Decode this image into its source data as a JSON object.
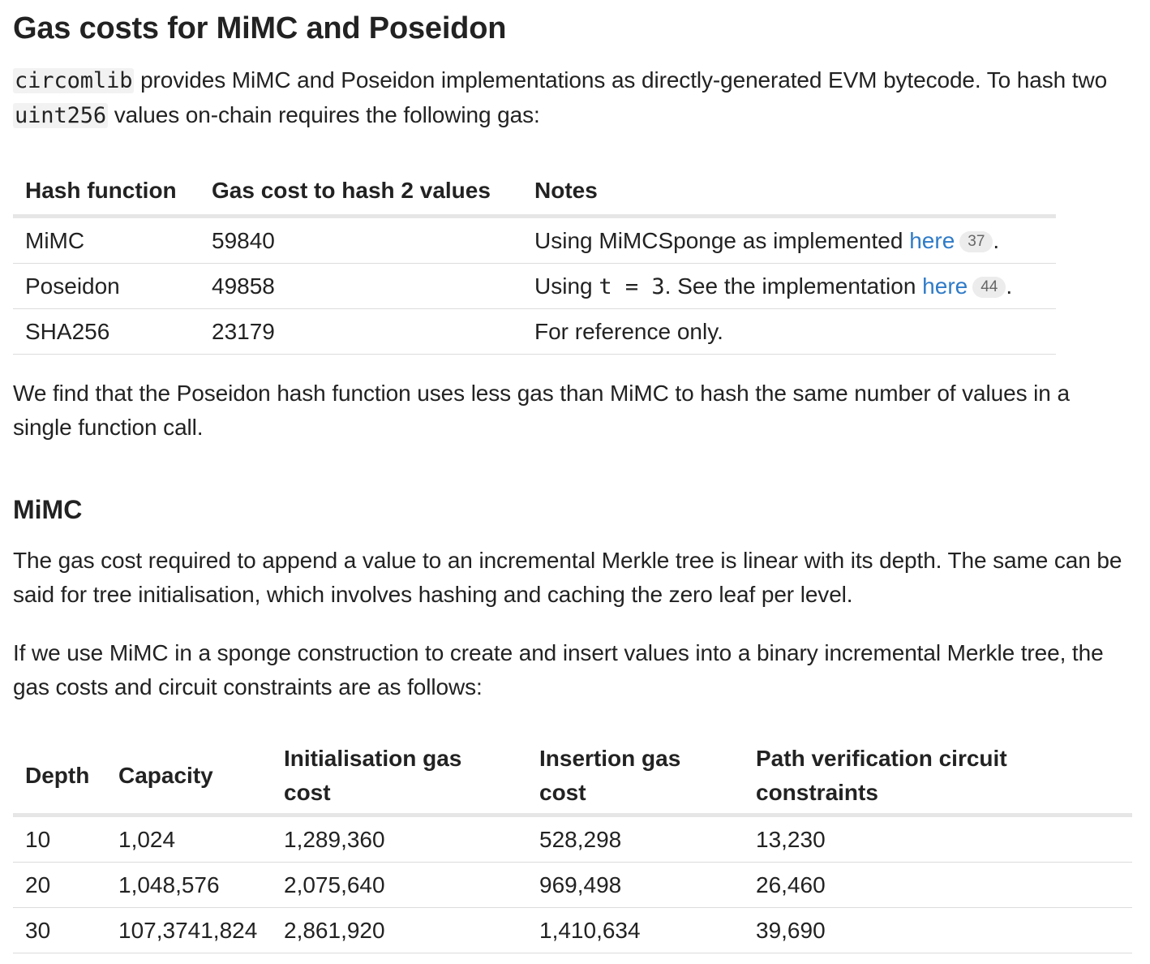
{
  "title": "Gas costs for MiMC and Poseidon",
  "intro": {
    "code1": "circomlib",
    "text1": " provides MiMC and Poseidon implementations as directly-generated EVM bytecode. To hash two ",
    "code2": "uint256",
    "text2": " values on-chain requires the following gas:"
  },
  "gas_table": {
    "headers": [
      "Hash function",
      "Gas cost to hash 2 values",
      "Notes"
    ],
    "rows": [
      {
        "hash": "MiMC",
        "gas": "59840",
        "note_pre": "Using MiMCSponge as implemented ",
        "code": "",
        "note_mid": "",
        "link": "here",
        "badge": "37",
        "note_post": "."
      },
      {
        "hash": "Poseidon",
        "gas": "49858",
        "note_pre": "Using ",
        "code": "t = 3",
        "note_mid": ". See the implementation ",
        "link": "here",
        "badge": "44",
        "note_post": "."
      },
      {
        "hash": "SHA256",
        "gas": "23179",
        "note_pre": "For reference only."
      }
    ]
  },
  "para_after_table": "We find that the Poseidon hash function uses less gas than MiMC to hash the same number of values in a single function call.",
  "section_mimc": {
    "heading": "MiMC",
    "para1": "The gas cost required to append a value to an incremental Merkle tree is linear with its depth. The same can be said for tree initialisation, which involves hashing and caching the zero leaf per level.",
    "para2": "If we use MiMC in a sponge construction to create and insert values into a binary incremental Merkle tree, the gas costs and circuit constraints are as follows:"
  },
  "depth_table": {
    "headers": [
      "Depth",
      "Capacity",
      "Initialisation gas cost",
      "Insertion gas cost",
      "Path verification circuit constraints"
    ],
    "rows": [
      [
        "10",
        "1,024",
        "1,289,360",
        "528,298",
        "13,230"
      ],
      [
        "20",
        "1,048,576",
        "2,075,640",
        "969,498",
        "26,460"
      ],
      [
        "30",
        "107,3741,824",
        "2,861,920",
        "1,410,634",
        "39,690"
      ]
    ]
  }
}
